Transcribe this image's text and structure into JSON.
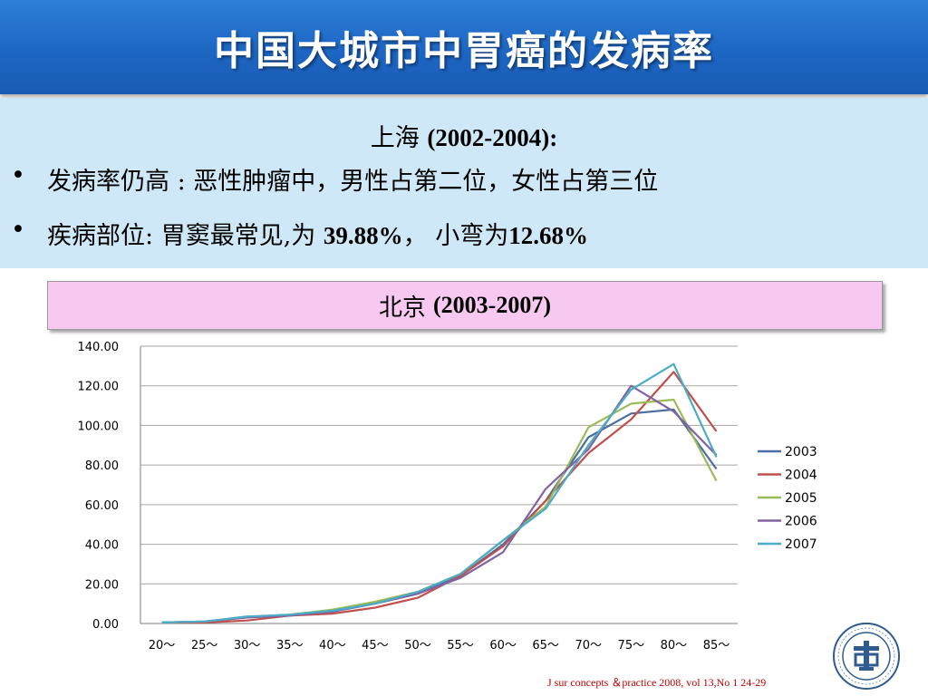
{
  "title": "中国大城市中胃癌的发病率",
  "shanghai": {
    "city": "上海",
    "years": "(2002-2004):",
    "bullets": [
      {
        "marker": "•",
        "prefix": "发病率仍高 : 恶性肿瘤中，男性占第二位，女性占第三位",
        "bold": "",
        "middle": "",
        "bold2": ""
      },
      {
        "marker": "•",
        "prefix": "疾病部位:",
        "middle": " 胃窦最常见,为 ",
        "bold": "39.88%",
        "suffix": "， 小弯为",
        "bold2": "12.68%"
      }
    ]
  },
  "beijing": {
    "city": "北京",
    "years": "(2003-2007)"
  },
  "citation": "J sur concepts ＆practice 2008, vol 13,No 1  24-29",
  "chart_data": {
    "type": "line",
    "title": "",
    "xlabel": "",
    "ylabel": "",
    "categories": [
      "20～",
      "25～",
      "30～",
      "35～",
      "40～",
      "45～",
      "50～",
      "55～",
      "60～",
      "65～",
      "70～",
      "75～",
      "80～",
      "85～"
    ],
    "ylim": [
      0,
      140
    ],
    "y_ticks": [
      "0.00",
      "20.00",
      "40.00",
      "60.00",
      "80.00",
      "100.00",
      "120.00",
      "140.00"
    ],
    "grid": true,
    "legend_position": "right",
    "series": [
      {
        "name": "2003",
        "color": "#4a6fa5",
        "values": [
          0.5,
          1.0,
          3.5,
          4.0,
          6.0,
          10.0,
          15.0,
          24.0,
          40.0,
          62.0,
          94.0,
          106.0,
          108.0,
          78.0
        ]
      },
      {
        "name": "2004",
        "color": "#c0504d",
        "values": [
          0.5,
          0.5,
          1.5,
          4.0,
          5.0,
          8.0,
          13.0,
          24.0,
          39.0,
          62.0,
          86.0,
          103.0,
          127.0,
          97.0
        ]
      },
      {
        "name": "2005",
        "color": "#9bbb59",
        "values": [
          0.5,
          1.0,
          3.0,
          4.5,
          7.0,
          11.0,
          16.0,
          25.0,
          42.0,
          59.0,
          99.0,
          111.0,
          113.0,
          72.0
        ]
      },
      {
        "name": "2006",
        "color": "#8064a2",
        "values": [
          0.5,
          1.0,
          3.0,
          4.0,
          6.0,
          10.0,
          15.0,
          23.0,
          36.0,
          68.0,
          88.0,
          120.0,
          107.0,
          85.0
        ]
      },
      {
        "name": "2007",
        "color": "#4bacc6",
        "values": [
          0.5,
          1.0,
          3.5,
          4.5,
          6.5,
          10.0,
          16.0,
          25.0,
          42.0,
          58.0,
          90.0,
          118.0,
          131.0,
          84.0
        ]
      }
    ]
  }
}
